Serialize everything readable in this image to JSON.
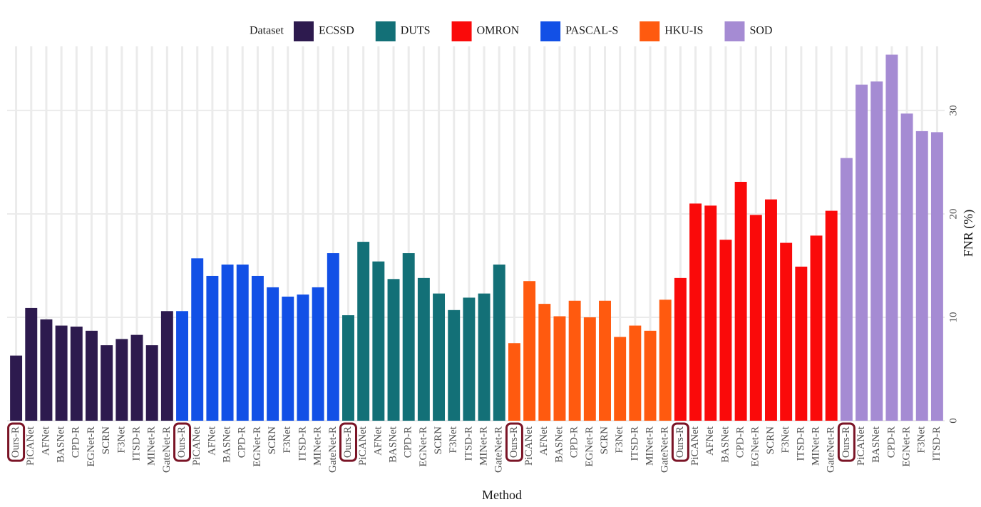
{
  "chart_data": {
    "type": "bar",
    "legend_title": "Dataset",
    "x_label": "Method",
    "y_label": "FNR (%)",
    "highlight": "Ours-R",
    "highlight_color": "#7a1426",
    "ylim": [
      0,
      36.2
    ],
    "yticks": [
      0,
      10,
      20,
      30
    ],
    "grid": true,
    "y_axis_side": "right",
    "categories": [
      "Ours-R",
      "PiCANet",
      "AFNet",
      "BASNet",
      "CPD-R",
      "EGNet-R",
      "SCRN",
      "F3Net",
      "ITSD-R",
      "MINet-R",
      "GateNet-R",
      "Ours-R",
      "PiCANet",
      "AFNet",
      "BASNet",
      "CPD-R",
      "EGNet-R",
      "SCRN",
      "F3Net",
      "ITSD-R",
      "MINet-R",
      "GateNet-R",
      "Ours-R",
      "PiCANet",
      "AFNet",
      "BASNet",
      "CPD-R",
      "EGNet-R",
      "SCRN",
      "F3Net",
      "ITSD-R",
      "MINet-R",
      "GateNet-R",
      "Ours-R",
      "PiCANet",
      "AFNet",
      "BASNet",
      "CPD-R",
      "EGNet-R",
      "SCRN",
      "F3Net",
      "ITSD-R",
      "MINet-R",
      "GateNet-R",
      "Ours-R",
      "PiCANet",
      "AFNet",
      "BASNet",
      "CPD-R",
      "EGNet-R",
      "SCRN",
      "F3Net",
      "ITSD-R",
      "MINet-R",
      "GateNet-R",
      "Ours-R",
      "PiCANet",
      "BASNet",
      "CPD-R",
      "EGNet-R",
      "F3Net",
      "ITSD-R"
    ],
    "series": [
      {
        "name": "ECSSD",
        "color": "#2d1a4e",
        "values": [
          6.3,
          10.9,
          9.8,
          9.2,
          9.1,
          8.7,
          7.3,
          7.9,
          8.3,
          7.3,
          10.6,
          null,
          null,
          null,
          null,
          null,
          null,
          null,
          null,
          null,
          null,
          null,
          null,
          null,
          null,
          null,
          null,
          null,
          null,
          null,
          null,
          null,
          null,
          null,
          null,
          null,
          null,
          null,
          null,
          null,
          null,
          null,
          null,
          null,
          null,
          null,
          null,
          null,
          null,
          null,
          null,
          null,
          null,
          null,
          null,
          null,
          null,
          null,
          null,
          null,
          null,
          null
        ]
      },
      {
        "name": "DUTS",
        "color": "#137077",
        "values": [
          null,
          null,
          null,
          null,
          null,
          null,
          null,
          null,
          null,
          null,
          null,
          null,
          null,
          null,
          null,
          null,
          null,
          null,
          null,
          null,
          null,
          null,
          10.2,
          17.3,
          15.4,
          13.7,
          16.2,
          13.8,
          12.3,
          10.7,
          11.9,
          12.3,
          15.1,
          null,
          null,
          null,
          null,
          null,
          null,
          null,
          null,
          null,
          null,
          null,
          null,
          null,
          null,
          null,
          null,
          null,
          null,
          null,
          null,
          null,
          null,
          null,
          null,
          null,
          null,
          null,
          null,
          null
        ]
      },
      {
        "name": "OMRON",
        "color": "#fa0a0a",
        "values": [
          null,
          null,
          null,
          null,
          null,
          null,
          null,
          null,
          null,
          null,
          null,
          null,
          null,
          null,
          null,
          null,
          null,
          null,
          null,
          null,
          null,
          null,
          null,
          null,
          null,
          null,
          null,
          null,
          null,
          null,
          null,
          null,
          null,
          null,
          null,
          null,
          null,
          null,
          null,
          null,
          null,
          null,
          null,
          null,
          13.8,
          21.0,
          20.8,
          17.5,
          23.1,
          19.9,
          21.4,
          17.2,
          14.9,
          17.9,
          20.3,
          null,
          null,
          null,
          null,
          null,
          null,
          null
        ]
      },
      {
        "name": "PASCAL-S",
        "color": "#1250e6",
        "values": [
          null,
          null,
          null,
          null,
          null,
          null,
          null,
          null,
          null,
          null,
          null,
          10.6,
          15.7,
          14.0,
          15.1,
          15.1,
          14.0,
          12.9,
          12.0,
          12.2,
          12.9,
          16.2,
          null,
          null,
          null,
          null,
          null,
          null,
          null,
          null,
          null,
          null,
          null,
          null,
          null,
          null,
          null,
          null,
          null,
          null,
          null,
          null,
          null,
          null,
          null,
          null,
          null,
          null,
          null,
          null,
          null,
          null,
          null,
          null,
          null,
          null,
          null,
          null,
          null,
          null,
          null,
          null
        ]
      },
      {
        "name": "HKU-IS",
        "color": "#ff5a0f",
        "values": [
          null,
          null,
          null,
          null,
          null,
          null,
          null,
          null,
          null,
          null,
          null,
          null,
          null,
          null,
          null,
          null,
          null,
          null,
          null,
          null,
          null,
          null,
          null,
          null,
          null,
          null,
          null,
          null,
          null,
          null,
          null,
          null,
          null,
          7.5,
          13.5,
          11.3,
          10.1,
          11.6,
          10.0,
          11.6,
          8.1,
          9.2,
          8.7,
          11.7,
          null,
          null,
          null,
          null,
          null,
          null,
          null,
          null,
          null,
          null,
          null,
          null,
          null,
          null,
          null,
          null,
          null,
          null
        ]
      },
      {
        "name": "SOD",
        "color": "#a58bd3",
        "values": [
          null,
          null,
          null,
          null,
          null,
          null,
          null,
          null,
          null,
          null,
          null,
          null,
          null,
          null,
          null,
          null,
          null,
          null,
          null,
          null,
          null,
          null,
          null,
          null,
          null,
          null,
          null,
          null,
          null,
          null,
          null,
          null,
          null,
          null,
          null,
          null,
          null,
          null,
          null,
          null,
          null,
          null,
          null,
          null,
          null,
          null,
          null,
          null,
          null,
          null,
          null,
          null,
          null,
          null,
          null,
          25.4,
          32.5,
          32.8,
          35.4,
          29.7,
          28.0,
          27.9
        ]
      }
    ]
  }
}
